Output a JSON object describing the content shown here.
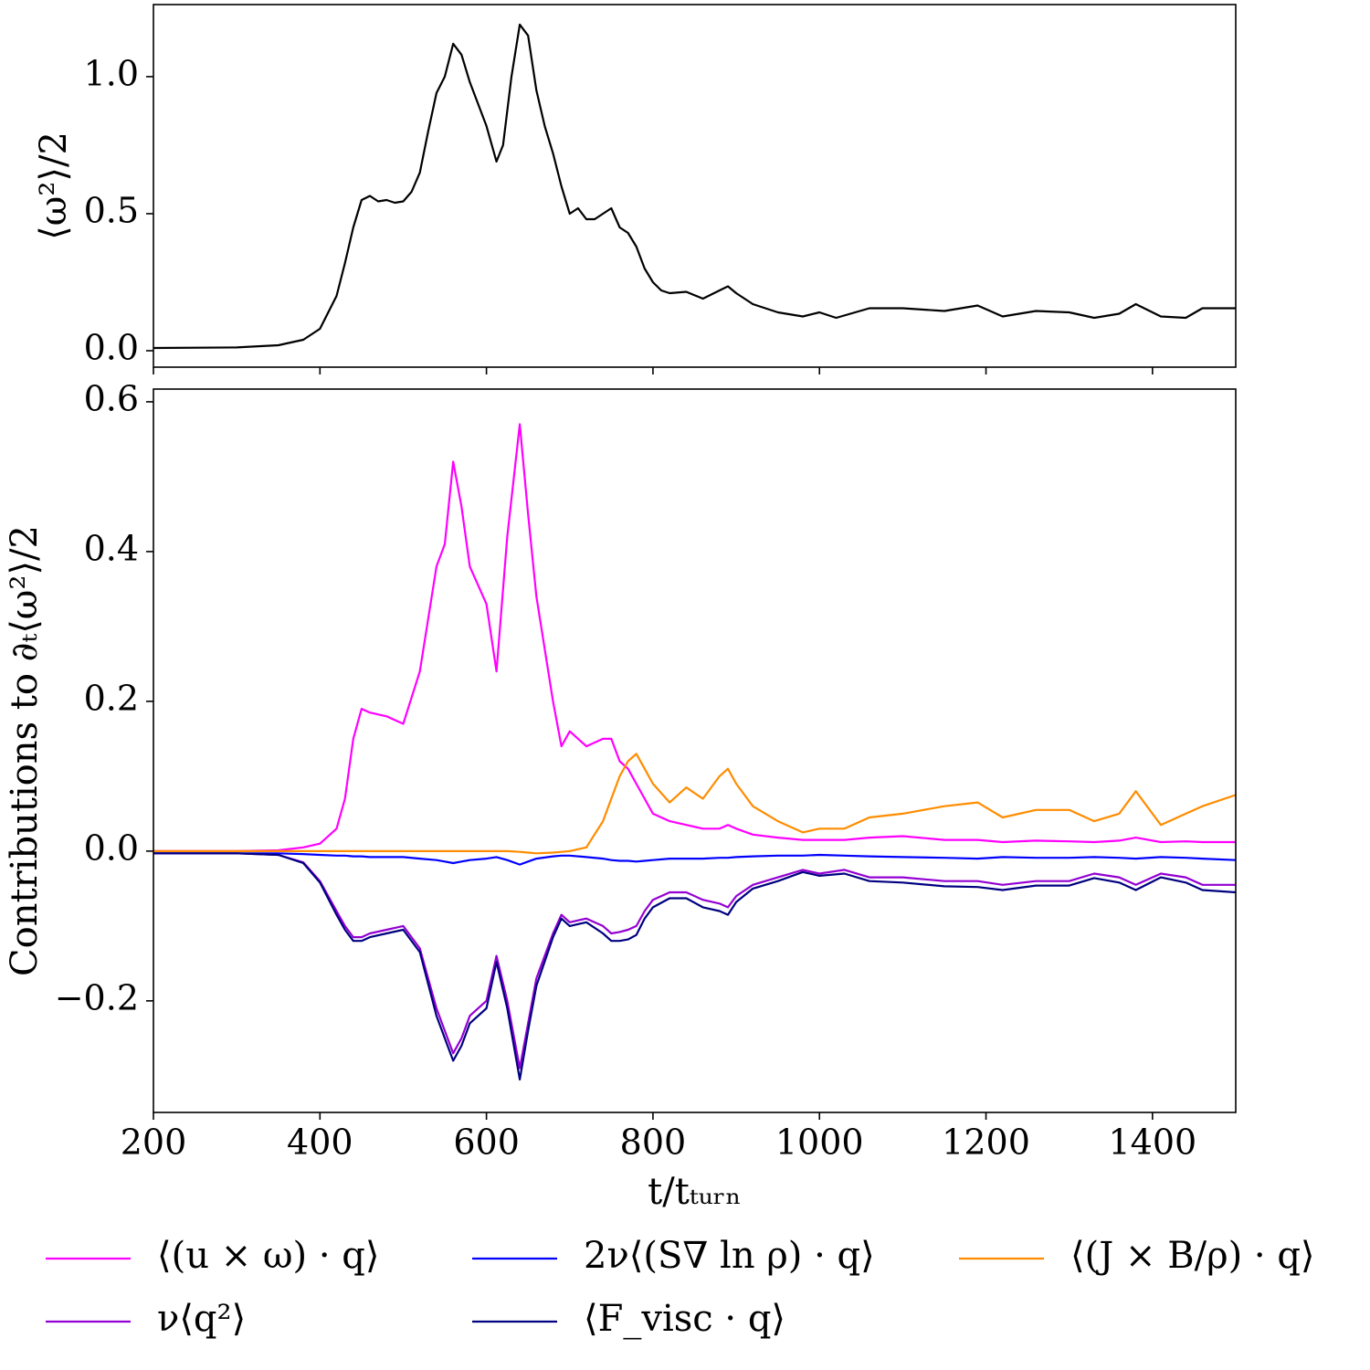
{
  "chart_data": [
    {
      "type": "line",
      "y_label": "⟨ω²⟩/2",
      "x": [
        200,
        300,
        350,
        380,
        400,
        420,
        430,
        440,
        450,
        460,
        470,
        480,
        490,
        500,
        510,
        520,
        530,
        540,
        550,
        560,
        570,
        580,
        590,
        600,
        612,
        620,
        630,
        640,
        650,
        660,
        670,
        680,
        690,
        700,
        710,
        720,
        730,
        740,
        750,
        760,
        770,
        780,
        790,
        800,
        810,
        820,
        840,
        860,
        880,
        890,
        900,
        920,
        950,
        980,
        1000,
        1020,
        1060,
        1100,
        1150,
        1190,
        1220,
        1260,
        1300,
        1330,
        1360,
        1380,
        1410,
        1440,
        1460,
        1500
      ],
      "series": [
        {
          "color": "#000000",
          "values": [
            0.01,
            0.012,
            0.02,
            0.04,
            0.08,
            0.2,
            0.32,
            0.45,
            0.55,
            0.565,
            0.545,
            0.55,
            0.54,
            0.545,
            0.58,
            0.65,
            0.8,
            0.94,
            1.0,
            1.12,
            1.08,
            0.98,
            0.9,
            0.82,
            0.69,
            0.75,
            1.0,
            1.19,
            1.15,
            0.95,
            0.82,
            0.72,
            0.6,
            0.5,
            0.52,
            0.48,
            0.48,
            0.5,
            0.52,
            0.45,
            0.43,
            0.38,
            0.3,
            0.25,
            0.22,
            0.21,
            0.215,
            0.19,
            0.22,
            0.235,
            0.21,
            0.17,
            0.14,
            0.125,
            0.14,
            0.12,
            0.155,
            0.155,
            0.145,
            0.165,
            0.125,
            0.145,
            0.14,
            0.12,
            0.135,
            0.17,
            0.125,
            0.12,
            0.155,
            0.155
          ]
        }
      ],
      "xlim": [
        200,
        1500
      ],
      "xticks": [
        200,
        400,
        600,
        800,
        1000,
        1200,
        1400
      ],
      "ylim": [
        -0.06,
        1.263
      ],
      "yticks": [
        {
          "value": 0,
          "label": "0.0"
        },
        {
          "value": 0.5,
          "label": "0.5"
        },
        {
          "value": 1,
          "label": "1.0"
        }
      ]
    },
    {
      "type": "line",
      "x_label": "t/tₜᵤᵣₙ",
      "y_label": "Contributions to ∂ₜ⟨ω²⟩/2",
      "x": [
        200,
        300,
        350,
        380,
        400,
        420,
        430,
        440,
        450,
        460,
        480,
        500,
        520,
        540,
        550,
        560,
        570,
        580,
        600,
        612,
        625,
        640,
        650,
        660,
        680,
        690,
        700,
        720,
        740,
        750,
        760,
        770,
        780,
        790,
        800,
        820,
        840,
        860,
        880,
        890,
        900,
        920,
        950,
        980,
        1000,
        1030,
        1060,
        1100,
        1150,
        1190,
        1220,
        1260,
        1300,
        1330,
        1360,
        1380,
        1410,
        1440,
        1460,
        1500
      ],
      "series": [
        {
          "name": "⟨(u × ω) · q⟩",
          "color": "#ff00ff",
          "values": [
            0,
            0,
            0.001,
            0.005,
            0.01,
            0.03,
            0.07,
            0.15,
            0.19,
            0.185,
            0.18,
            0.17,
            0.24,
            0.38,
            0.41,
            0.52,
            0.46,
            0.38,
            0.33,
            0.24,
            0.42,
            0.57,
            0.45,
            0.34,
            0.2,
            0.14,
            0.16,
            0.14,
            0.15,
            0.15,
            0.12,
            0.11,
            0.09,
            0.07,
            0.05,
            0.04,
            0.035,
            0.03,
            0.03,
            0.035,
            0.03,
            0.022,
            0.018,
            0.015,
            0.015,
            0.015,
            0.018,
            0.02,
            0.015,
            0.015,
            0.012,
            0.014,
            0.013,
            0.012,
            0.014,
            0.018,
            0.012,
            0.013,
            0.012,
            0.012
          ]
        },
        {
          "name": "ν⟨q²⟩",
          "color": "#9400d3",
          "values": [
            -0.003,
            -0.003,
            -0.005,
            -0.015,
            -0.04,
            -0.08,
            -0.1,
            -0.115,
            -0.115,
            -0.11,
            -0.105,
            -0.1,
            -0.13,
            -0.21,
            -0.24,
            -0.27,
            -0.25,
            -0.22,
            -0.2,
            -0.14,
            -0.2,
            -0.29,
            -0.23,
            -0.17,
            -0.11,
            -0.085,
            -0.095,
            -0.09,
            -0.1,
            -0.11,
            -0.108,
            -0.105,
            -0.1,
            -0.08,
            -0.065,
            -0.055,
            -0.055,
            -0.065,
            -0.07,
            -0.075,
            -0.06,
            -0.045,
            -0.035,
            -0.025,
            -0.03,
            -0.025,
            -0.035,
            -0.035,
            -0.04,
            -0.04,
            -0.045,
            -0.04,
            -0.04,
            -0.03,
            -0.035,
            -0.045,
            -0.03,
            -0.035,
            -0.045,
            -0.045
          ]
        },
        {
          "name": "2ν⟨(S∇ ln ρ) · q⟩",
          "color": "#0000ff",
          "values": [
            -0.003,
            -0.003,
            -0.003,
            -0.004,
            -0.005,
            -0.006,
            -0.006,
            -0.007,
            -0.007,
            -0.008,
            -0.008,
            -0.008,
            -0.01,
            -0.012,
            -0.014,
            -0.016,
            -0.014,
            -0.012,
            -0.01,
            -0.008,
            -0.012,
            -0.018,
            -0.014,
            -0.01,
            -0.007,
            -0.006,
            -0.006,
            -0.008,
            -0.01,
            -0.012,
            -0.013,
            -0.013,
            -0.014,
            -0.013,
            -0.012,
            -0.01,
            -0.01,
            -0.01,
            -0.009,
            -0.009,
            -0.008,
            -0.007,
            -0.006,
            -0.006,
            -0.005,
            -0.006,
            -0.007,
            -0.008,
            -0.009,
            -0.01,
            -0.008,
            -0.009,
            -0.009,
            -0.008,
            -0.009,
            -0.01,
            -0.008,
            -0.009,
            -0.01,
            -0.012
          ]
        },
        {
          "name": "⟨F_visc · q⟩",
          "color": "#000080",
          "values": [
            -0.003,
            -0.003,
            -0.005,
            -0.016,
            -0.042,
            -0.085,
            -0.105,
            -0.12,
            -0.12,
            -0.115,
            -0.11,
            -0.105,
            -0.135,
            -0.22,
            -0.25,
            -0.28,
            -0.26,
            -0.23,
            -0.21,
            -0.148,
            -0.21,
            -0.305,
            -0.24,
            -0.18,
            -0.115,
            -0.09,
            -0.1,
            -0.095,
            -0.11,
            -0.12,
            -0.12,
            -0.118,
            -0.112,
            -0.09,
            -0.075,
            -0.063,
            -0.063,
            -0.075,
            -0.08,
            -0.085,
            -0.068,
            -0.05,
            -0.04,
            -0.028,
            -0.033,
            -0.03,
            -0.04,
            -0.042,
            -0.047,
            -0.048,
            -0.052,
            -0.046,
            -0.046,
            -0.036,
            -0.042,
            -0.052,
            -0.035,
            -0.042,
            -0.052,
            -0.055
          ]
        },
        {
          "name": "⟨(J × B/ρ) · q⟩",
          "color": "#ff8c00",
          "values": [
            0,
            0,
            0,
            0,
            0,
            0,
            0,
            0,
            0,
            0,
            0,
            0,
            0,
            0,
            0,
            0,
            0,
            0,
            0,
            0,
            0,
            -0.001,
            -0.002,
            -0.003,
            -0.002,
            -0.001,
            0,
            0.005,
            0.04,
            0.07,
            0.1,
            0.12,
            0.13,
            0.11,
            0.09,
            0.065,
            0.085,
            0.07,
            0.1,
            0.11,
            0.09,
            0.06,
            0.04,
            0.025,
            0.03,
            0.03,
            0.045,
            0.05,
            0.06,
            0.065,
            0.045,
            0.055,
            0.055,
            0.04,
            0.05,
            0.08,
            0.035,
            0.05,
            0.06,
            0.075
          ]
        }
      ],
      "xlim": [
        200,
        1500
      ],
      "xticks": [
        200,
        400,
        600,
        800,
        1000,
        1200,
        1400
      ],
      "ylim": [
        -0.349,
        0.617
      ],
      "yticks": [
        {
          "value": -0.2,
          "label": "−0.2"
        },
        {
          "value": 0,
          "label": "0.0"
        },
        {
          "value": 0.2,
          "label": "0.2"
        },
        {
          "value": 0.4,
          "label": "0.4"
        },
        {
          "value": 0.6,
          "label": "0.6"
        }
      ]
    }
  ]
}
